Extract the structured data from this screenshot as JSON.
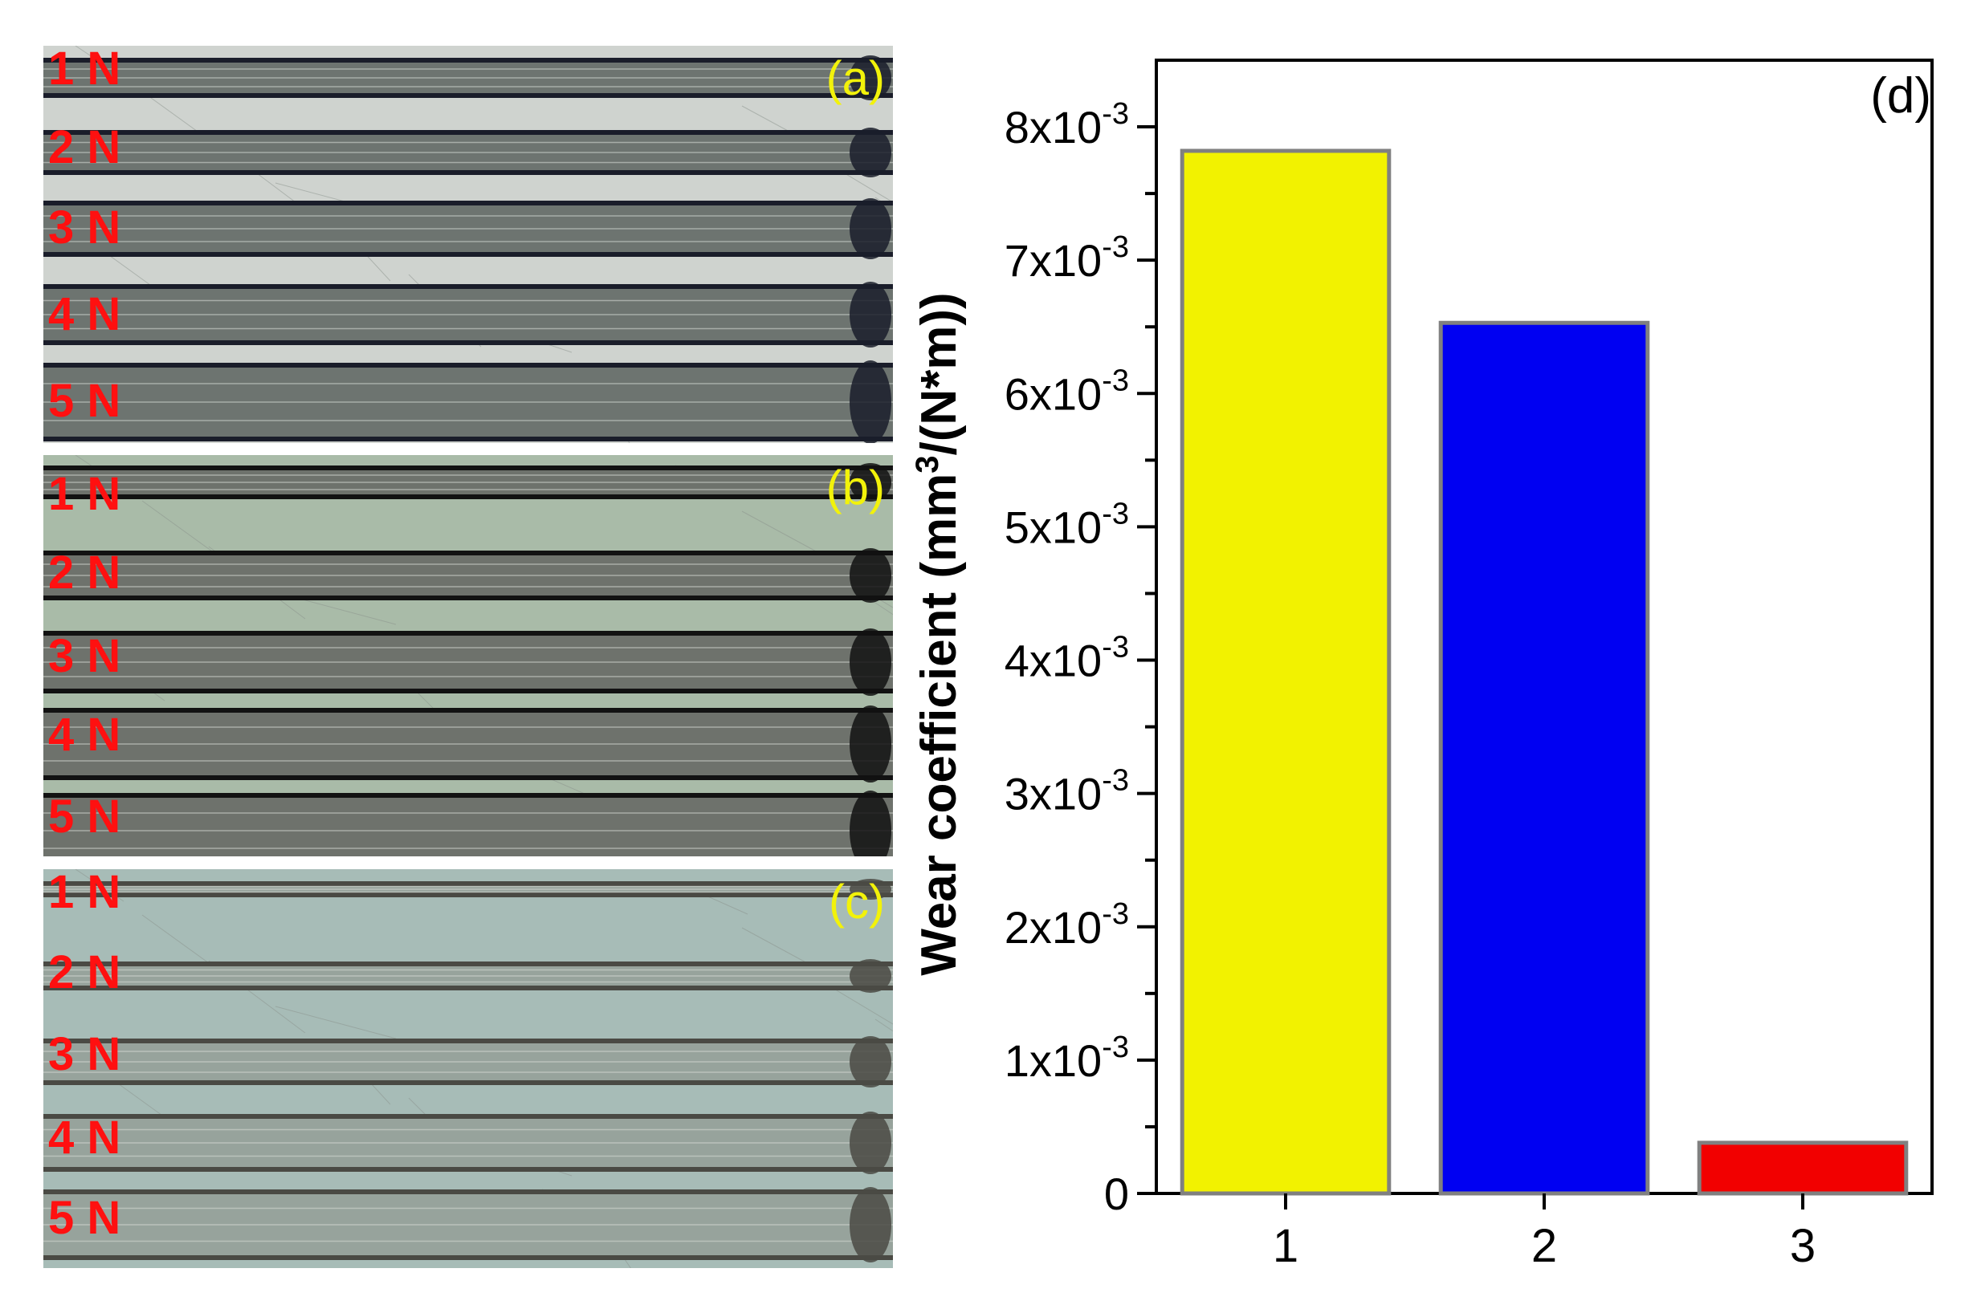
{
  "micrographs": [
    {
      "letter": "(a)",
      "loads": [
        "1 N",
        "2 N",
        "3 N",
        "4 N",
        "5 N"
      ],
      "background": "#cfd3cf",
      "track_color": "#6d7470",
      "edge_color": "#1a1d2a"
    },
    {
      "letter": "(b)",
      "loads": [
        "1 N",
        "2 N",
        "3 N",
        "4 N",
        "5 N"
      ],
      "background": "#a9bba8",
      "track_color": "#6e726c",
      "edge_color": "#121212"
    },
    {
      "letter": "(c)",
      "loads": [
        "1 N",
        "2 N",
        "3 N",
        "4 N",
        "5 N"
      ],
      "background": "#a7bcb7",
      "track_color": "#97a39c",
      "edge_color": "#4a4a44"
    }
  ],
  "chart_data": {
    "type": "bar",
    "panel_letter": "(d)",
    "categories": [
      "1",
      "2",
      "3"
    ],
    "values": [
      0.00782,
      0.00653,
      0.00038
    ],
    "bar_colors": [
      "#f2f200",
      "#0000f2",
      "#f20000"
    ],
    "bar_edge_color": "#808080",
    "ylabel_main": "Wear coefficient (mm",
    "ylabel_sup": "3",
    "ylabel_end": "/(N*m))",
    "ylim": [
      0,
      0.0085
    ],
    "yticks": [
      {
        "value": 0,
        "mantissa": "0",
        "exp": ""
      },
      {
        "value": 0.001,
        "mantissa": "1x10",
        "exp": "-3"
      },
      {
        "value": 0.002,
        "mantissa": "2x10",
        "exp": "-3"
      },
      {
        "value": 0.003,
        "mantissa": "3x10",
        "exp": "-3"
      },
      {
        "value": 0.004,
        "mantissa": "4x10",
        "exp": "-3"
      },
      {
        "value": 0.005,
        "mantissa": "5x10",
        "exp": "-3"
      },
      {
        "value": 0.006,
        "mantissa": "6x10",
        "exp": "-3"
      },
      {
        "value": 0.007,
        "mantissa": "7x10",
        "exp": "-3"
      },
      {
        "value": 0.008,
        "mantissa": "8x10",
        "exp": "-3"
      }
    ],
    "grid": false
  }
}
